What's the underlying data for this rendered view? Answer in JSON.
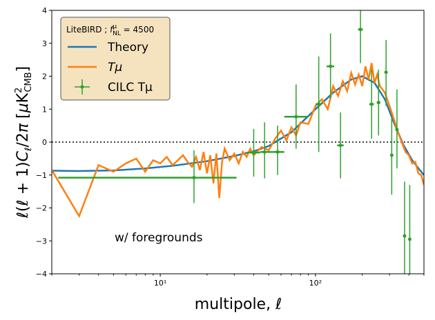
{
  "chart_data": {
    "type": "line",
    "xlabel": "multipole, ℓ",
    "ylabel": "ℓ(ℓ + 1)C_ℓ/2π [μK²_CMB]",
    "xscale": "log",
    "xlim": [
      2,
      500
    ],
    "ylim": [
      -4,
      4
    ],
    "x_ticks": [
      {
        "value": 10,
        "label": "10¹"
      },
      {
        "value": 100,
        "label": "10²"
      }
    ],
    "y_ticks": [
      -4,
      -3,
      -2,
      -1,
      0,
      1,
      2,
      3,
      4
    ],
    "zero_line": {
      "y": 0,
      "style": "dotted"
    },
    "legend": {
      "title": "LiteBIRD ; f^μ_NL = 4500",
      "placement": "top-left",
      "entries": [
        "Theory",
        "Tμ",
        "CILC Tμ"
      ]
    },
    "annotation": "w/ foregrounds",
    "series": [
      {
        "name": "Theory",
        "color": "#1f77b4",
        "x": [
          2,
          3,
          5,
          8,
          12,
          20,
          30,
          40,
          50,
          70,
          100,
          130,
          170,
          200,
          240,
          280,
          320,
          370,
          420,
          470,
          500
        ],
        "y": [
          -0.87,
          -0.88,
          -0.86,
          -0.8,
          -0.72,
          -0.58,
          -0.42,
          -0.28,
          -0.12,
          0.3,
          1.0,
          1.5,
          1.9,
          2.0,
          1.8,
          1.3,
          0.6,
          -0.1,
          -0.55,
          -0.85,
          -1.0
        ]
      },
      {
        "name": "Tμ",
        "color": "#ff7f0e",
        "x": [
          2,
          3,
          4,
          5,
          6,
          7,
          8,
          9,
          10,
          11,
          12,
          13,
          14,
          15,
          16,
          17,
          18,
          19,
          20,
          21,
          22,
          23,
          24,
          25,
          26,
          28,
          30,
          32,
          34,
          36,
          38,
          40,
          45,
          50,
          55,
          60,
          65,
          70,
          75,
          80,
          90,
          100,
          110,
          120,
          130,
          140,
          150,
          160,
          170,
          180,
          190,
          200,
          210,
          220,
          230,
          240,
          250,
          260,
          280,
          300,
          320,
          340,
          360,
          380,
          400,
          420,
          440,
          460,
          480,
          500
        ],
        "y": [
          -0.85,
          -2.25,
          -0.7,
          -0.9,
          -0.65,
          -0.5,
          -0.9,
          -0.55,
          -0.65,
          -0.45,
          -0.7,
          -0.55,
          -0.4,
          -0.6,
          -0.75,
          -0.45,
          -0.85,
          -0.3,
          -0.95,
          -0.4,
          -1.25,
          -0.35,
          -1.7,
          -0.6,
          -0.2,
          -0.55,
          -0.35,
          -0.65,
          -0.3,
          -0.45,
          -0.2,
          -0.4,
          -0.15,
          -0.25,
          0.1,
          0.35,
          0.05,
          0.45,
          0.2,
          0.6,
          0.55,
          1.1,
          1.3,
          1.0,
          1.7,
          1.4,
          1.85,
          1.55,
          2.1,
          1.75,
          2.05,
          1.7,
          2.3,
          1.9,
          2.4,
          1.8,
          2.05,
          1.7,
          1.5,
          1.1,
          0.7,
          0.3,
          0.0,
          -0.3,
          -0.4,
          -0.65,
          -0.6,
          -0.95,
          -1.0,
          -1.3
        ]
      },
      {
        "name": "CILC Tμ",
        "color": "#2ca02c",
        "points": [
          {
            "x": 16.5,
            "y": -1.08,
            "xlo": 2.2,
            "xhi": 31,
            "ylo": -1.85,
            "yhi": -0.25
          },
          {
            "x": 40,
            "y": -0.32,
            "xlo": 36,
            "xhi": 44,
            "ylo": -1.05,
            "yhi": 0.4
          },
          {
            "x": 47,
            "y": -0.3,
            "xlo": 44,
            "xhi": 52,
            "ylo": -1.1,
            "yhi": 0.6
          },
          {
            "x": 57,
            "y": -0.3,
            "xlo": 52,
            "xhi": 63,
            "ylo": -1.0,
            "yhi": 0.5
          },
          {
            "x": 75,
            "y": 0.77,
            "xlo": 63,
            "xhi": 90,
            "ylo": -0.2,
            "yhi": 1.75
          },
          {
            "x": 105,
            "y": 1.15,
            "xlo": 100,
            "xhi": 110,
            "ylo": -0.3,
            "yhi": 2.6
          },
          {
            "x": 125,
            "y": 2.3,
            "xlo": 118,
            "xhi": 132,
            "ylo": 1.3,
            "yhi": 3.3
          },
          {
            "x": 145,
            "y": -0.1,
            "xlo": 138,
            "xhi": 152,
            "ylo": -1.1,
            "yhi": 0.9
          },
          {
            "x": 195,
            "y": 3.42,
            "xlo": 188,
            "xhi": 202,
            "ylo": 2.4,
            "yhi": 4.4
          },
          {
            "x": 230,
            "y": 1.15,
            "xlo": 222,
            "xhi": 238,
            "ylo": 0.1,
            "yhi": 2.2
          },
          {
            "x": 255,
            "y": 1.2,
            "xlo": 248,
            "xhi": 262,
            "ylo": 0.2,
            "yhi": 2.2
          },
          {
            "x": 285,
            "y": 2.12,
            "xlo": 278,
            "xhi": 292,
            "ylo": 1.1,
            "yhi": 3.1
          },
          {
            "x": 310,
            "y": -0.4,
            "xlo": 303,
            "xhi": 317,
            "ylo": -1.6,
            "yhi": 0.8
          },
          {
            "x": 335,
            "y": 0.38,
            "xlo": 328,
            "xhi": 342,
            "ylo": -0.8,
            "yhi": 1.6
          },
          {
            "x": 375,
            "y": -2.85,
            "xlo": 368,
            "xhi": 382,
            "ylo": -4.5,
            "yhi": -1.2
          },
          {
            "x": 405,
            "y": -2.95,
            "xlo": 398,
            "xhi": 412,
            "ylo": -4.5,
            "yhi": -1.3
          }
        ]
      }
    ]
  }
}
